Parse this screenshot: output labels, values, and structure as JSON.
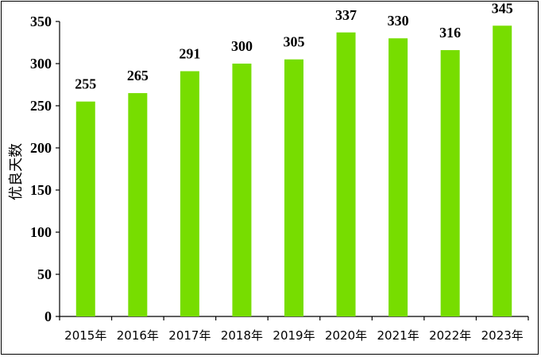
{
  "chart_data": {
    "type": "bar",
    "ylabel": "优良天数",
    "categories": [
      "2015年",
      "2016年",
      "2017年",
      "2018年",
      "2019年",
      "2020年",
      "2021年",
      "2022年",
      "2023年"
    ],
    "values": [
      255,
      265,
      291,
      300,
      305,
      337,
      330,
      316,
      345
    ],
    "data_labels": [
      "255",
      "265",
      "291",
      "300",
      "305",
      "337",
      "330",
      "316",
      "345"
    ],
    "ylim": [
      0,
      350
    ],
    "yticks": [
      0,
      50,
      100,
      150,
      200,
      250,
      300,
      350
    ],
    "ytick_labels": [
      "0",
      "50",
      "100",
      "150",
      "200",
      "250",
      "300",
      "350"
    ],
    "grid": false,
    "legend": "none",
    "bar_color": "#77DD00"
  }
}
